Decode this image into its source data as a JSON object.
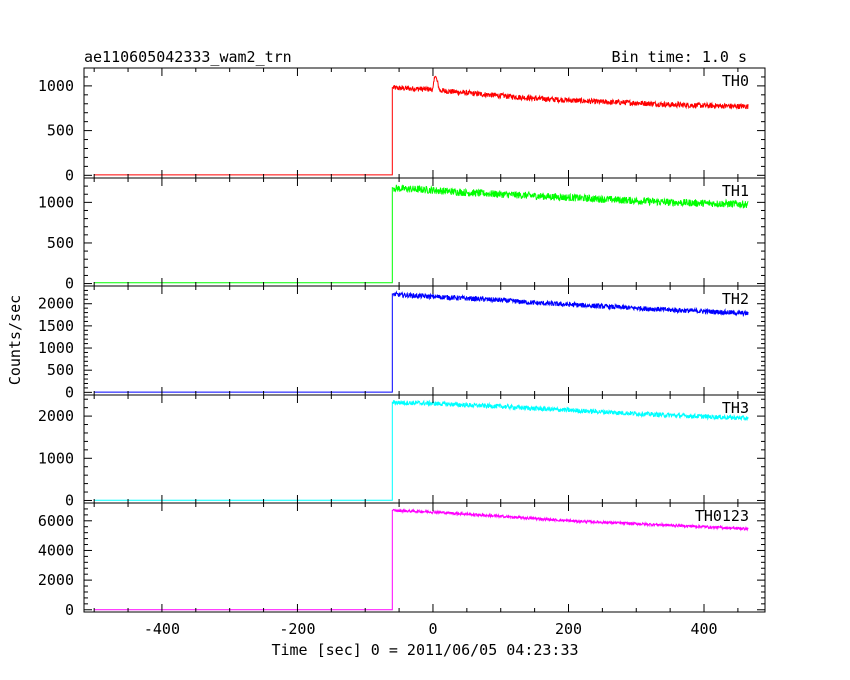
{
  "chart_data": {
    "type": "line",
    "title": "ae110605042333_wam2_trn",
    "subtitle": "Bin time: 1.0 s",
    "xlabel": "Time [sec] 0 = 2011/06/05 04:23:33",
    "ylabel": "Counts/sec",
    "xlim": [
      -515,
      490
    ],
    "x_ticks": [
      -400,
      -200,
      0,
      200,
      400
    ],
    "trigger_time": -60,
    "end_time": 465,
    "start_time": -500,
    "panels": [
      {
        "name": "TH0",
        "color": "#ff0000",
        "ylim": [
          -30,
          1200
        ],
        "y_ticks": [
          0,
          500,
          1000
        ],
        "baseline": 5,
        "x": [
          -60,
          -50,
          0,
          3,
          10,
          50,
          100,
          150,
          200,
          250,
          300,
          350,
          400,
          465
        ],
        "y": [
          980,
          975,
          960,
          1130,
          950,
          920,
          890,
          860,
          840,
          820,
          810,
          790,
          780,
          770
        ],
        "noise": 30
      },
      {
        "name": "TH1",
        "color": "#00ff00",
        "ylim": [
          -30,
          1300
        ],
        "y_ticks": [
          0,
          500,
          1000
        ],
        "baseline": 10,
        "x": [
          -60,
          -50,
          0,
          50,
          100,
          150,
          200,
          250,
          300,
          350,
          400,
          465
        ],
        "y": [
          1180,
          1170,
          1150,
          1120,
          1100,
          1080,
          1060,
          1040,
          1020,
          1000,
          990,
          975
        ],
        "noise": 45
      },
      {
        "name": "TH2",
        "color": "#0000ff",
        "ylim": [
          -60,
          2400
        ],
        "y_ticks": [
          0,
          500,
          1000,
          1500,
          2000
        ],
        "baseline": 5,
        "x": [
          -60,
          -50,
          0,
          50,
          100,
          150,
          200,
          250,
          300,
          350,
          400,
          465
        ],
        "y": [
          2220,
          2200,
          2160,
          2120,
          2080,
          2020,
          1980,
          1940,
          1900,
          1860,
          1830,
          1780
        ],
        "noise": 55
      },
      {
        "name": "TH3",
        "color": "#00ffff",
        "ylim": [
          -60,
          2500
        ],
        "y_ticks": [
          0,
          1000,
          2000
        ],
        "baseline": 5,
        "x": [
          -60,
          -50,
          0,
          50,
          100,
          150,
          200,
          250,
          300,
          350,
          400,
          465
        ],
        "y": [
          2330,
          2320,
          2300,
          2260,
          2230,
          2180,
          2140,
          2100,
          2060,
          2020,
          1990,
          1950
        ],
        "noise": 55
      },
      {
        "name": "TH0123",
        "color": "#ff00ff",
        "ylim": [
          -150,
          7200
        ],
        "y_ticks": [
          0,
          2000,
          4000,
          6000
        ],
        "baseline": 0,
        "x": [
          -60,
          -50,
          0,
          50,
          100,
          150,
          200,
          250,
          300,
          350,
          400,
          465
        ],
        "y": [
          6700,
          6680,
          6600,
          6450,
          6300,
          6150,
          6000,
          5900,
          5800,
          5700,
          5600,
          5450
        ],
        "noise": 90
      }
    ]
  }
}
